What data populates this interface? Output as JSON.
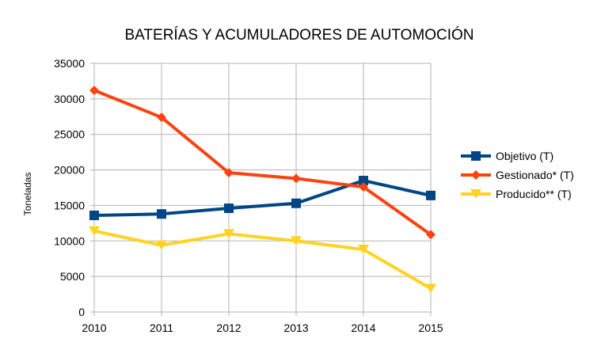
{
  "chart_data": {
    "type": "line",
    "title": "BATERÍAS Y ACUMULADORES DE AUTOMOCIÓN",
    "xlabel": "",
    "ylabel": "Toneladas",
    "x": [
      "2010",
      "2011",
      "2012",
      "2013",
      "2014",
      "2015"
    ],
    "ylim": [
      0,
      35000
    ],
    "yticks": [
      0,
      5000,
      10000,
      15000,
      20000,
      25000,
      30000,
      35000
    ],
    "grid": true,
    "legend_position": "right",
    "series": [
      {
        "name": "Objetivo (T)",
        "color": "#004586",
        "marker": "square",
        "values": [
          13600,
          13800,
          14600,
          15300,
          18500,
          16400
        ]
      },
      {
        "name": "Gestionado* (T)",
        "color": "#ff420e",
        "marker": "diamond",
        "values": [
          31200,
          27400,
          19600,
          18800,
          17600,
          10900
        ]
      },
      {
        "name": "Producido** (T)",
        "color": "#ffd320",
        "marker": "triangle-down",
        "values": [
          11400,
          9400,
          11000,
          10000,
          8800,
          3300
        ]
      }
    ]
  }
}
